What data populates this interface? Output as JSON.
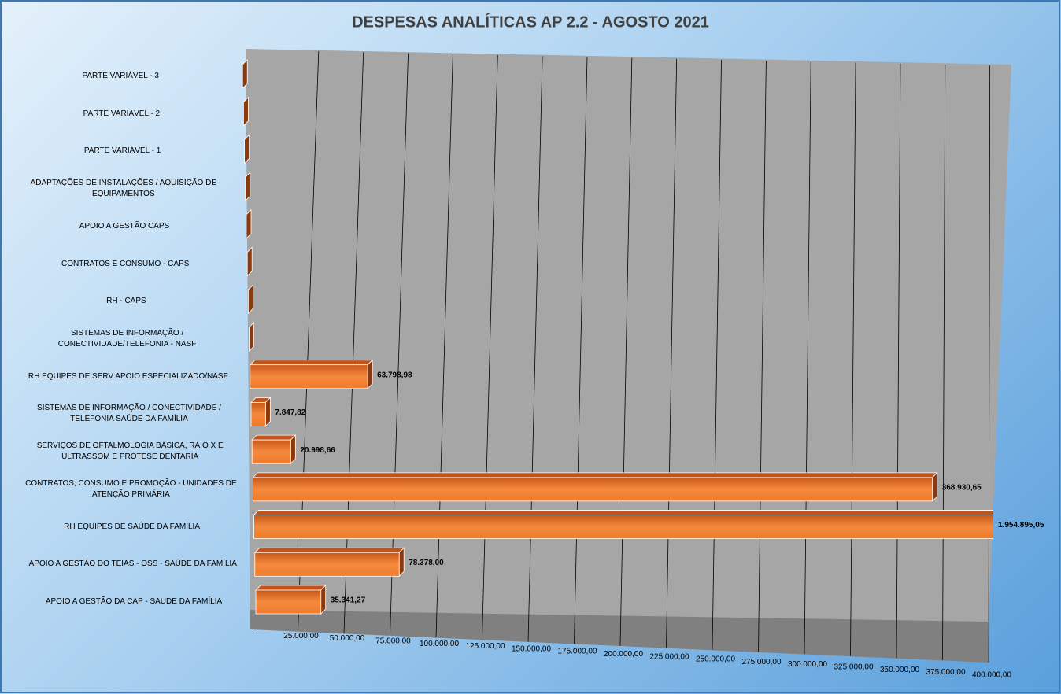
{
  "chart_data": {
    "type": "bar3d-horizontal",
    "title": "DESPESAS ANALÍTICAS AP 2.2 - AGOSTO 2021",
    "categories": [
      "APOIO A GESTÃO DA CAP - SAUDE DA FAMÍLIA",
      "APOIO A GESTÃO DO TEIAS - OSS - SAÚDE DA FAMÍLIA",
      "RH EQUIPES DE SAÚDE DA FAMÍLIA",
      "CONTRATOS, CONSUMO E PROMOÇÃO - UNIDADES DE ATENÇÃO PRIMÁRIA",
      "SERVIÇOS DE OFTALMOLOGIA BÁSICA, RAIO X E ULTRASSOM E PRÓTESE DENTARIA",
      "SISTEMAS DE INFORMAÇÃO / CONECTIVIDADE / TELEFONIA SAÚDE DA FAMÍLIA",
      "RH EQUIPES DE SERV APOIO ESPECIALIZADO/NASF",
      "SISTEMAS DE INFORMAÇÃO / CONECTIVIDADE/TELEFONIA - NASF",
      "RH - CAPS",
      "CONTRATOS E CONSUMO - CAPS",
      "APOIO A GESTÃO CAPS",
      "ADAPTAÇÕES DE INSTALAÇÕES / AQUISIÇÃO DE EQUIPAMENTOS",
      "PARTE VARIÁVEL - 1",
      "PARTE VARIÁVEL - 2",
      "PARTE VARIÁVEL - 3"
    ],
    "values": [
      35341.27,
      78378.0,
      1954895.05,
      368930.65,
      20998.66,
      7847.82,
      63798.98,
      0,
      0,
      0,
      0,
      0,
      0,
      0,
      0
    ],
    "value_labels": [
      "35.341,27",
      "78.378,00",
      "1.954.895,05",
      "368.930,65",
      "20.998,66",
      "7.847,82",
      "63.798,98",
      null,
      null,
      null,
      null,
      null,
      null,
      null,
      null
    ],
    "color": "#f07a2a",
    "xlim": [
      0,
      400000
    ],
    "xticks": [
      {
        "value": 0,
        "label": "-"
      },
      {
        "value": 25000,
        "label": "25.000,00"
      },
      {
        "value": 50000,
        "label": "50.000,00"
      },
      {
        "value": 75000,
        "label": "75.000,00"
      },
      {
        "value": 100000,
        "label": "100.000,00"
      },
      {
        "value": 125000,
        "label": "125.000,00"
      },
      {
        "value": 150000,
        "label": "150.000,00"
      },
      {
        "value": 175000,
        "label": "175.000,00"
      },
      {
        "value": 200000,
        "label": "200.000,00"
      },
      {
        "value": 225000,
        "label": "225.000,00"
      },
      {
        "value": 250000,
        "label": "250.000,00"
      },
      {
        "value": 275000,
        "label": "275.000,00"
      },
      {
        "value": 300000,
        "label": "300.000,00"
      },
      {
        "value": 325000,
        "label": "325.000,00"
      },
      {
        "value": 350000,
        "label": "350.000,00"
      },
      {
        "value": 375000,
        "label": "375.000,00"
      },
      {
        "value": 400000,
        "label": "400.000,00"
      }
    ],
    "grid": true
  }
}
